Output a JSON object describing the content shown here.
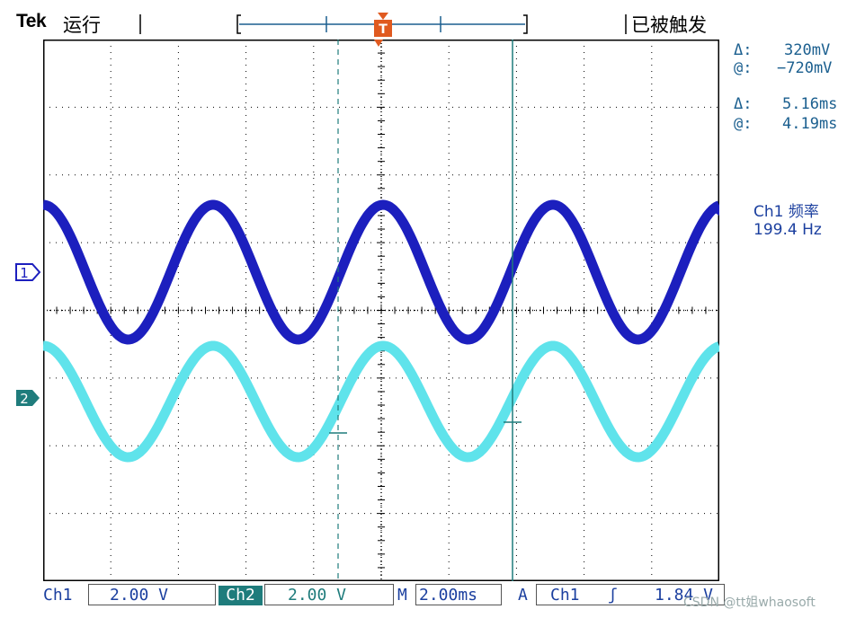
{
  "header": {
    "brand": "Tek",
    "run_status": "运行",
    "trigger_status": "已被触发"
  },
  "readouts": {
    "delta_symbol": "Δ:",
    "at_symbol": "@:",
    "voltage_delta": "320mV",
    "voltage_at": "−720mV",
    "time_delta": "5.16ms",
    "time_at": "4.19ms"
  },
  "measurement": {
    "label": "Ch1 频率",
    "value": "199.4 Hz"
  },
  "markers": {
    "trigger": "T",
    "ch1": "1",
    "ch2": "2"
  },
  "bottom": {
    "ch1_label": "Ch1",
    "ch1_scale": "2.00 V",
    "ch2_label": "Ch2",
    "ch2_scale": "2.00 V",
    "timebase_label": "M",
    "timebase": "2.00ms",
    "trigger_label": "A",
    "trigger_source": "Ch1",
    "trigger_slope": "ʃ",
    "trigger_level": "1.84 V"
  },
  "watermark": "CSDN @tt姐whaosoft",
  "colors": {
    "ch1": "#1c1fbe",
    "ch2": "#5fe3eb",
    "cursor": "#1f7c7c",
    "readout": "#1b5f8f"
  }
}
